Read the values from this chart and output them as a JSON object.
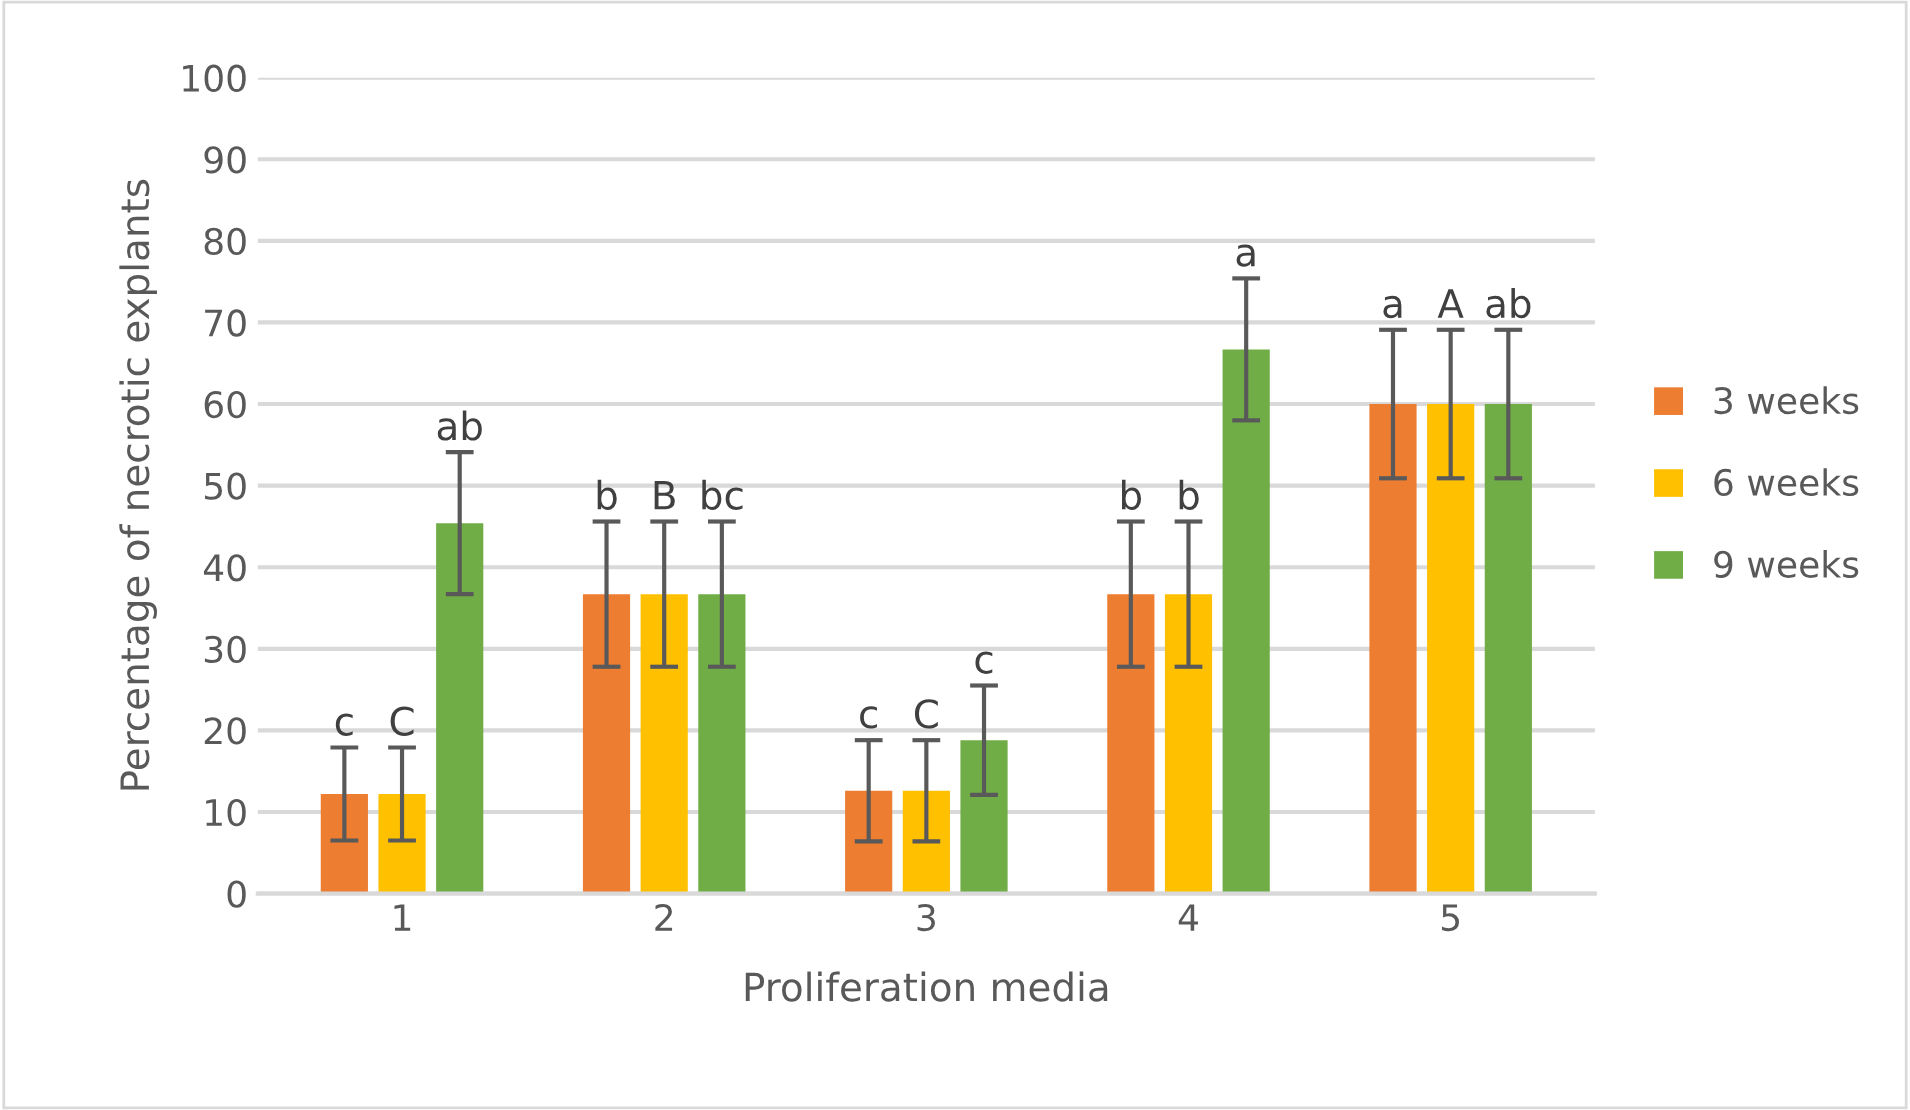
{
  "chart_data": {
    "type": "bar",
    "xlabel": "Proliferation media",
    "ylabel": "Percentage of necrotic explants",
    "categories": [
      "1",
      "2",
      "3",
      "4",
      "5"
    ],
    "series": [
      {
        "name": "3 weeks",
        "color": "#ed7d31",
        "values": [
          12.2,
          36.7,
          12.6,
          36.7,
          60
        ],
        "errors": [
          5.7,
          8.9,
          6.2,
          8.9,
          9.1
        ],
        "value_labels": [
          "c",
          "b",
          "c",
          "b",
          "a"
        ]
      },
      {
        "name": "6 weeks",
        "color": "#ffc000",
        "values": [
          12.2,
          36.7,
          12.6,
          36.7,
          60
        ],
        "errors": [
          5.7,
          8.9,
          6.2,
          8.9,
          9.1
        ],
        "value_labels": [
          "C",
          "B",
          "C",
          "b",
          "A"
        ]
      },
      {
        "name": "9 weeks",
        "color": "#70ad47",
        "values": [
          45.4,
          36.7,
          18.8,
          66.7,
          60
        ],
        "errors": [
          8.7,
          8.9,
          6.7,
          8.7,
          9.1
        ],
        "value_labels": [
          "ab",
          "bc",
          "c",
          "a",
          "ab"
        ]
      }
    ],
    "ylim": [
      0,
      100
    ],
    "yticks": [
      0,
      10,
      20,
      30,
      40,
      50,
      60,
      70,
      80,
      90,
      100
    ],
    "grid": "y",
    "legend": "right"
  }
}
